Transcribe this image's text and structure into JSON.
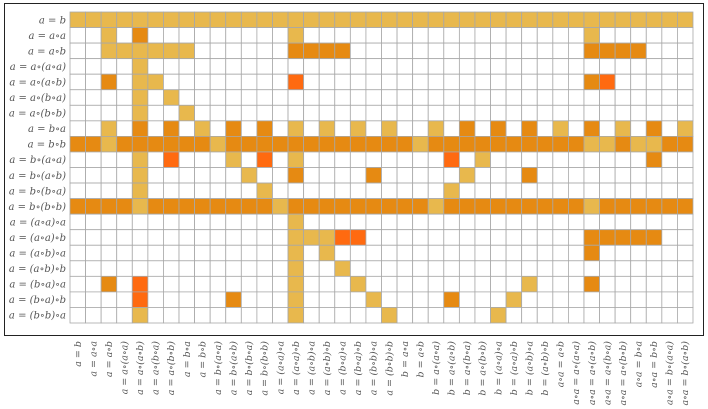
{
  "chart_data": {
    "type": "heatmap",
    "rows": [
      "a = b",
      "a = a∘a",
      "a = a∘b",
      "a = a∘(a∘a)",
      "a = a∘(a∘b)",
      "a = a∘(b∘a)",
      "a = a∘(b∘b)",
      "a = b∘a",
      "a = b∘b",
      "a = b∘(a∘a)",
      "a = b∘(a∘b)",
      "a = b∘(b∘a)",
      "a = b∘(b∘b)",
      "a = (a∘a)∘a",
      "a = (a∘a)∘b",
      "a = (a∘b)∘a",
      "a = (a∘b)∘b",
      "a = (b∘a)∘a",
      "a = (b∘a)∘b",
      "a = (b∘b)∘a"
    ],
    "columns": [
      "a = b",
      "a = a∘a",
      "a = a∘b",
      "a = a∘(a∘a)",
      "a = a∘(a∘b)",
      "a = a∘(b∘a)",
      "a = a∘(b∘b)",
      "a = b∘a",
      "a = b∘b",
      "a = b∘(a∘a)",
      "a = b∘(a∘b)",
      "a = b∘(b∘a)",
      "a = b∘(b∘b)",
      "a = (a∘a)∘a",
      "a = (a∘a)∘b",
      "a = (a∘b)∘a",
      "a = (a∘b)∘b",
      "a = (b∘a)∘a",
      "a = (b∘a)∘b",
      "a = (b∘b)∘a",
      "a = (b∘b)∘b",
      "b = a∘a",
      "b = a∘b",
      "b = a∘(a∘a)",
      "b = a∘(a∘b)",
      "b = a∘(b∘a)",
      "b = a∘(b∘b)",
      "b = (a∘a)∘a",
      "b = (a∘a)∘b",
      "b = (a∘b)∘a",
      "b = (a∘b)∘b",
      "a∘a = a∘b",
      "a∘a = a∘(a∘a)",
      "a∘a = a∘(a∘b)",
      "a∘a = a∘(b∘a)",
      "a∘a = a∘(b∘b)",
      "a∘a = b∘a",
      "a∘a = b∘b",
      "a∘a = b∘(a∘a)",
      "a∘a = b∘(a∘b)"
    ],
    "levels": {
      "0": "none",
      "1": "light",
      "2": "medium",
      "3": "dark"
    },
    "colors": {
      "0": "#ffffff",
      "1": "#e8b84d",
      "2": "#e68a12",
      "3": "#ff6a10",
      "grid": "#a8a8a8"
    },
    "matrix": [
      [
        1,
        1,
        1,
        1,
        1,
        1,
        1,
        1,
        1,
        1,
        1,
        1,
        1,
        1,
        1,
        1,
        1,
        1,
        1,
        1,
        1,
        1,
        1,
        1,
        1,
        1,
        1,
        1,
        1,
        1,
        1,
        1,
        1,
        1,
        1,
        1,
        1,
        1,
        1,
        1
      ],
      [
        0,
        0,
        1,
        0,
        2,
        0,
        0,
        0,
        0,
        0,
        0,
        0,
        0,
        0,
        1,
        0,
        0,
        0,
        0,
        0,
        0,
        0,
        0,
        0,
        0,
        0,
        0,
        0,
        0,
        0,
        0,
        0,
        0,
        1,
        0,
        0,
        0,
        0,
        0,
        0
      ],
      [
        0,
        0,
        1,
        1,
        1,
        1,
        1,
        1,
        0,
        0,
        0,
        0,
        0,
        0,
        2,
        2,
        2,
        2,
        0,
        0,
        0,
        0,
        0,
        0,
        0,
        0,
        0,
        0,
        0,
        0,
        0,
        0,
        0,
        2,
        2,
        2,
        2,
        0,
        0,
        0
      ],
      [
        0,
        0,
        0,
        0,
        1,
        0,
        0,
        0,
        0,
        0,
        0,
        0,
        0,
        0,
        0,
        0,
        0,
        0,
        0,
        0,
        0,
        0,
        0,
        0,
        0,
        0,
        0,
        0,
        0,
        0,
        0,
        0,
        0,
        0,
        0,
        0,
        0,
        0,
        0,
        0
      ],
      [
        0,
        0,
        2,
        0,
        1,
        1,
        0,
        0,
        0,
        0,
        0,
        0,
        0,
        0,
        3,
        0,
        0,
        0,
        0,
        0,
        0,
        0,
        0,
        0,
        0,
        0,
        0,
        0,
        0,
        0,
        0,
        0,
        0,
        2,
        3,
        0,
        0,
        0,
        0,
        0
      ],
      [
        0,
        0,
        0,
        0,
        1,
        0,
        1,
        0,
        0,
        0,
        0,
        0,
        0,
        0,
        0,
        0,
        0,
        0,
        0,
        0,
        0,
        0,
        0,
        0,
        0,
        0,
        0,
        0,
        0,
        0,
        0,
        0,
        0,
        0,
        0,
        0,
        0,
        0,
        0,
        0
      ],
      [
        0,
        0,
        0,
        0,
        1,
        0,
        0,
        1,
        0,
        0,
        0,
        0,
        0,
        0,
        0,
        0,
        0,
        0,
        0,
        0,
        0,
        0,
        0,
        0,
        0,
        0,
        0,
        0,
        0,
        0,
        0,
        0,
        0,
        0,
        0,
        0,
        0,
        0,
        0,
        0
      ],
      [
        0,
        0,
        1,
        0,
        2,
        0,
        2,
        0,
        1,
        0,
        2,
        0,
        2,
        0,
        1,
        0,
        1,
        0,
        1,
        0,
        1,
        0,
        0,
        1,
        0,
        2,
        0,
        2,
        0,
        2,
        0,
        1,
        0,
        2,
        0,
        1,
        0,
        2,
        0,
        1
      ],
      [
        2,
        2,
        1,
        2,
        2,
        2,
        2,
        2,
        2,
        1,
        2,
        2,
        2,
        2,
        2,
        2,
        2,
        2,
        2,
        2,
        2,
        2,
        1,
        2,
        2,
        2,
        2,
        2,
        2,
        2,
        2,
        2,
        2,
        1,
        1,
        2,
        1,
        1,
        2,
        2
      ],
      [
        0,
        0,
        0,
        0,
        1,
        0,
        3,
        0,
        0,
        0,
        1,
        0,
        3,
        0,
        1,
        0,
        0,
        0,
        0,
        0,
        0,
        0,
        0,
        0,
        3,
        0,
        1,
        0,
        0,
        0,
        0,
        0,
        0,
        0,
        0,
        0,
        0,
        2,
        0,
        0
      ],
      [
        0,
        0,
        0,
        0,
        1,
        0,
        0,
        0,
        0,
        0,
        0,
        1,
        0,
        0,
        2,
        0,
        0,
        0,
        0,
        2,
        0,
        0,
        0,
        0,
        0,
        1,
        0,
        0,
        0,
        2,
        0,
        0,
        0,
        0,
        0,
        0,
        0,
        0,
        0,
        0
      ],
      [
        0,
        0,
        0,
        0,
        1,
        0,
        0,
        0,
        0,
        0,
        0,
        0,
        1,
        0,
        0,
        0,
        0,
        0,
        0,
        0,
        0,
        0,
        0,
        0,
        1,
        0,
        0,
        0,
        0,
        0,
        0,
        0,
        0,
        0,
        0,
        0,
        0,
        0,
        0,
        0
      ],
      [
        2,
        2,
        2,
        2,
        1,
        2,
        2,
        2,
        2,
        2,
        2,
        2,
        2,
        1,
        2,
        2,
        2,
        2,
        2,
        2,
        2,
        2,
        2,
        1,
        2,
        2,
        2,
        2,
        2,
        2,
        2,
        2,
        2,
        1,
        2,
        2,
        2,
        2,
        2,
        2
      ],
      [
        0,
        0,
        0,
        0,
        0,
        0,
        0,
        0,
        0,
        0,
        0,
        0,
        0,
        0,
        1,
        0,
        0,
        0,
        0,
        0,
        0,
        0,
        0,
        0,
        0,
        0,
        0,
        0,
        0,
        0,
        0,
        0,
        0,
        0,
        0,
        0,
        0,
        0,
        0,
        0
      ],
      [
        0,
        0,
        0,
        0,
        0,
        0,
        0,
        0,
        0,
        0,
        0,
        0,
        0,
        0,
        1,
        1,
        1,
        3,
        3,
        0,
        0,
        0,
        0,
        0,
        0,
        0,
        0,
        0,
        0,
        0,
        0,
        0,
        0,
        2,
        2,
        2,
        2,
        2,
        0,
        0
      ],
      [
        0,
        0,
        0,
        0,
        0,
        0,
        0,
        0,
        0,
        0,
        0,
        0,
        0,
        0,
        1,
        0,
        1,
        0,
        0,
        0,
        0,
        0,
        0,
        0,
        0,
        0,
        0,
        0,
        0,
        0,
        0,
        0,
        0,
        2,
        0,
        0,
        0,
        0,
        0,
        0
      ],
      [
        0,
        0,
        0,
        0,
        0,
        0,
        0,
        0,
        0,
        0,
        0,
        0,
        0,
        0,
        1,
        0,
        0,
        1,
        0,
        0,
        0,
        0,
        0,
        0,
        0,
        0,
        0,
        0,
        0,
        0,
        0,
        0,
        0,
        0,
        0,
        0,
        0,
        0,
        0,
        0
      ],
      [
        0,
        0,
        2,
        0,
        3,
        0,
        0,
        0,
        0,
        0,
        0,
        0,
        0,
        0,
        1,
        0,
        0,
        0,
        1,
        0,
        0,
        0,
        0,
        0,
        0,
        0,
        0,
        0,
        0,
        1,
        0,
        0,
        0,
        2,
        0,
        0,
        0,
        0,
        0,
        0
      ],
      [
        0,
        0,
        0,
        0,
        3,
        0,
        0,
        0,
        0,
        0,
        2,
        0,
        0,
        0,
        1,
        0,
        0,
        0,
        0,
        1,
        0,
        0,
        0,
        0,
        2,
        0,
        0,
        0,
        1,
        0,
        0,
        0,
        0,
        0,
        0,
        0,
        0,
        0,
        0,
        0
      ],
      [
        0,
        0,
        0,
        0,
        1,
        0,
        0,
        0,
        0,
        0,
        0,
        0,
        0,
        0,
        1,
        0,
        0,
        0,
        0,
        0,
        1,
        0,
        0,
        0,
        0,
        0,
        0,
        1,
        0,
        0,
        0,
        0,
        0,
        0,
        0,
        0,
        0,
        0,
        0,
        0
      ]
    ]
  }
}
